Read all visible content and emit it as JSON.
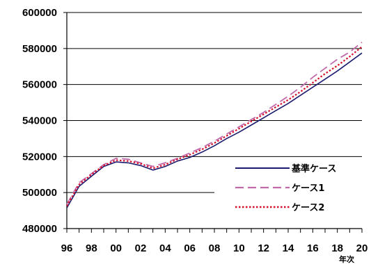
{
  "chart_data": {
    "type": "line",
    "x_tick_labels": [
      "96",
      "98",
      "00",
      "02",
      "04",
      "06",
      "08",
      "10",
      "12",
      "14",
      "16",
      "18",
      "20"
    ],
    "y_tick_labels": [
      "480000",
      "500000",
      "520000",
      "540000",
      "560000",
      "580000",
      "600000"
    ],
    "ylim": [
      480000,
      600000
    ],
    "xlabel": "年次",
    "ylabel": "",
    "grid": "horizontal",
    "legend_position": "lower-right",
    "x": [
      1996,
      1997,
      1998,
      1999,
      2000,
      2001,
      2002,
      2003,
      2004,
      2005,
      2006,
      2007,
      2008,
      2009,
      2010,
      2011,
      2012,
      2013,
      2014,
      2015,
      2016,
      2017,
      2018,
      2019,
      2020
    ],
    "series": [
      {
        "name": "基準ケース",
        "color": "#1a1a6e",
        "style": "solid",
        "values": [
          491500,
          503500,
          509000,
          514500,
          517000,
          516500,
          515000,
          512500,
          514500,
          517500,
          519500,
          522500,
          526000,
          530000,
          533500,
          537500,
          541500,
          545500,
          549500,
          554000,
          558500,
          563000,
          567500,
          572500,
          577500
        ]
      },
      {
        "name": "ケース1",
        "color": "#c06aaa",
        "style": "dashed",
        "values": [
          493500,
          505500,
          510500,
          515500,
          519000,
          518500,
          516500,
          514500,
          516500,
          519000,
          522000,
          525000,
          528500,
          532500,
          536500,
          540500,
          544500,
          549000,
          553500,
          558500,
          564000,
          569000,
          574000,
          578000,
          583500
        ]
      },
      {
        "name": "ケース2",
        "color": "#d4102c",
        "style": "dotted",
        "values": [
          492500,
          504500,
          510000,
          515000,
          518000,
          517500,
          516000,
          513500,
          515500,
          518500,
          521000,
          524000,
          527500,
          531500,
          535500,
          539500,
          543500,
          547500,
          551500,
          556000,
          561000,
          566000,
          570500,
          575500,
          581000
        ]
      }
    ]
  }
}
